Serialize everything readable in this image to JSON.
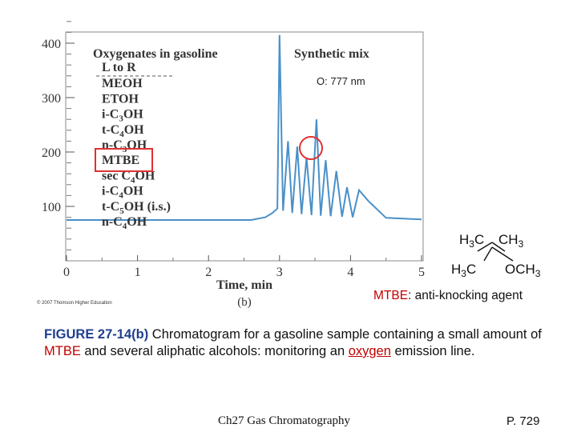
{
  "chart_data": {
    "type": "line",
    "panel_title_left": "Oxygenates in gasoline",
    "panel_title_right": "Synthetic mix",
    "xlabel": "Time, min",
    "panel_label": "(b)",
    "xlim": [
      0,
      5
    ],
    "ylim": [
      0,
      450
    ],
    "x_ticks": [
      "0",
      "1",
      "2",
      "3",
      "4",
      "5"
    ],
    "y_ticks": [
      "100",
      "200",
      "300",
      "400"
    ],
    "annotation": "O: 777 nm",
    "series": [
      {
        "color": "#4a90c8",
        "x": [
          0,
          2.6,
          2.8,
          2.9,
          2.97,
          3.0,
          3.05,
          3.12,
          3.18,
          3.25,
          3.31,
          3.38,
          3.45,
          3.52,
          3.58,
          3.65,
          3.72,
          3.8,
          3.88,
          3.95,
          4.03,
          4.12,
          4.25,
          4.5,
          5.0
        ],
        "y": [
          75,
          75,
          80,
          88,
          96,
          415,
          92,
          220,
          88,
          210,
          86,
          190,
          84,
          260,
          83,
          185,
          82,
          165,
          81,
          135,
          80,
          130,
          110,
          79,
          76
        ]
      }
    ],
    "legend_items": [
      {
        "text": "L to R",
        "sub": ""
      },
      {
        "text": "MEOH",
        "sub": ""
      },
      {
        "text": "ETOH",
        "sub": ""
      },
      {
        "text": "i-C",
        "sub": "3",
        "rest": "OH"
      },
      {
        "text": "t-C",
        "sub": "4",
        "rest": "OH"
      },
      {
        "text": "n-C",
        "sub": "3",
        "rest": "OH"
      },
      {
        "text": "MTBE",
        "sub": ""
      },
      {
        "text": "sec C",
        "sub": "4",
        "rest": "OH"
      },
      {
        "text": "i-C",
        "sub": "4",
        "rest": "OH"
      },
      {
        "text": "t-C",
        "sub": "5",
        "rest": "OH (i.s.)"
      },
      {
        "text": "n-C",
        "sub": "4",
        "rest": "OH"
      }
    ],
    "highlight_colors": {
      "box": "#e03030",
      "circle": "#e03030"
    }
  },
  "structure": {
    "top_left": "H",
    "top_left_sub": "3",
    "top_left_rest": "C",
    "top_right": "CH",
    "top_right_sub": "3",
    "bottom_left": "H",
    "bottom_left_sub": "3",
    "bottom_left_rest": "C",
    "bottom_right": "OCH",
    "bottom_right_sub": "3"
  },
  "mtbe_note": {
    "red": "MTBE",
    "rest": ": anti-knocking agent"
  },
  "caption": {
    "figure": "FIGURE 27-14(b)",
    "text1": "  Chromatogram for a gasoline sample containing a small amount of ",
    "mtbe": "MTBE",
    "text2": " and several aliphatic alcohols: monitoring an ",
    "oxygen": "oxygen",
    "text3": " emission line."
  },
  "copyright": "© 2007 Thomson Higher Education",
  "footer": {
    "center": "Ch27 Gas Chromatography",
    "page": "P. 729"
  }
}
